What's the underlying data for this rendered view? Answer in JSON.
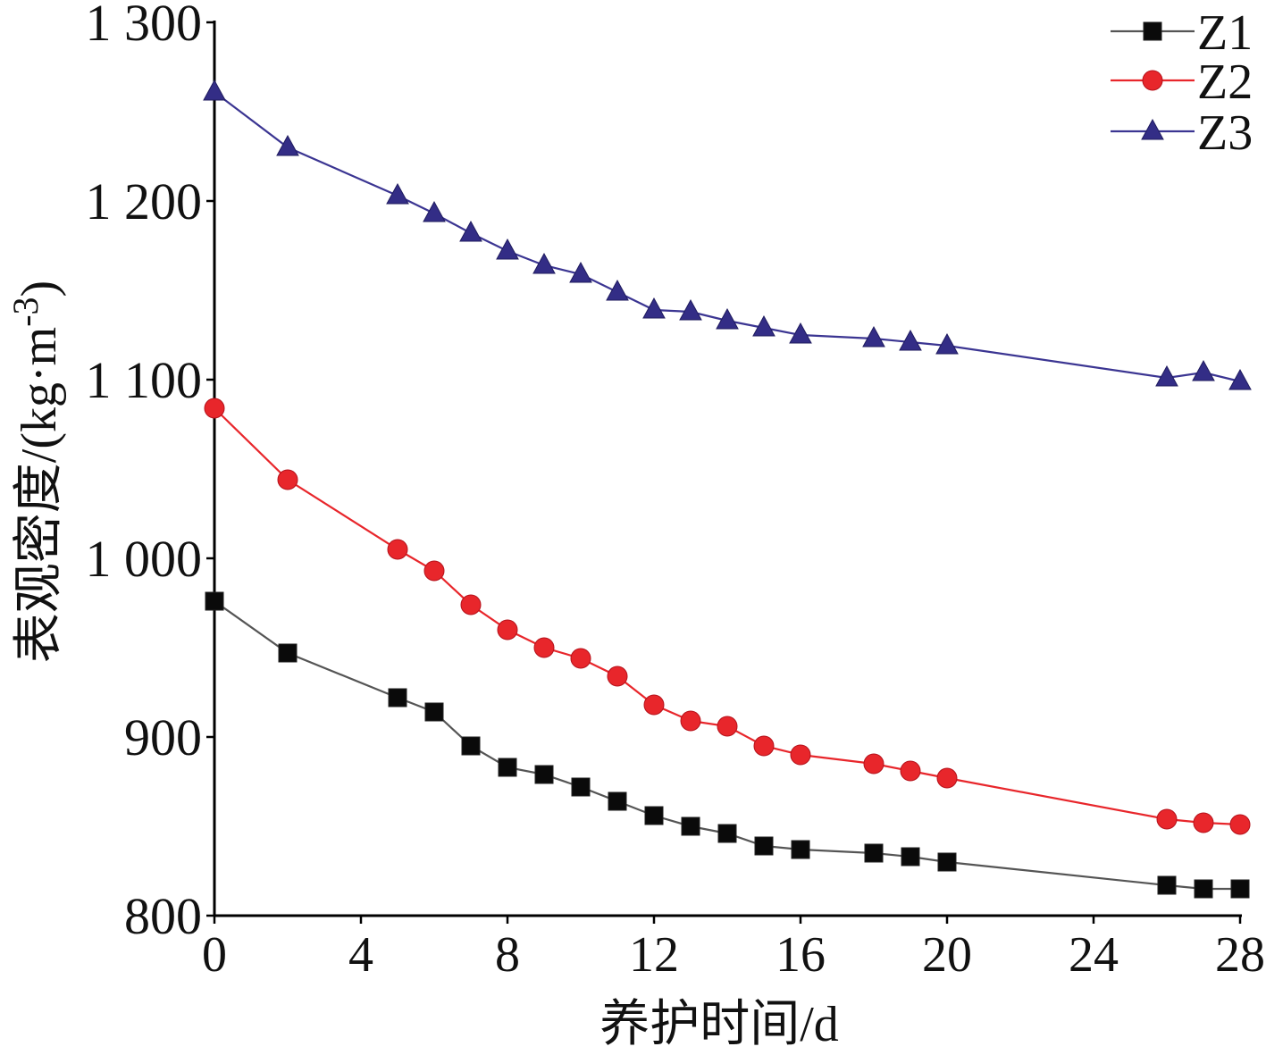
{
  "chart_data": {
    "type": "line",
    "title": "",
    "xlabel": "养护时间/d",
    "ylabel": {
      "base": "表观密度/(kg·m",
      "sup": "-3",
      "close": ")"
    },
    "xlim": [
      0,
      28
    ],
    "ylim": [
      800,
      1300
    ],
    "xticks": [
      0,
      4,
      8,
      12,
      16,
      20,
      24,
      28
    ],
    "yticks": [
      {
        "value": 800,
        "label": "800"
      },
      {
        "value": 900,
        "label": "900"
      },
      {
        "value": 1000,
        "label": "1 000"
      },
      {
        "value": 1100,
        "label": "1 100"
      },
      {
        "value": 1200,
        "label": "1 200"
      },
      {
        "value": 1300,
        "label": "1 300"
      }
    ],
    "grid": false,
    "legend": "top-right",
    "x": [
      0,
      2,
      5,
      6,
      7,
      8,
      9,
      10,
      11,
      12,
      13,
      14,
      15,
      16,
      18,
      19,
      20,
      26,
      27,
      28
    ],
    "series": [
      {
        "name": "Z1",
        "marker": "square",
        "color": "#0a0a0a",
        "line_color": "#555555",
        "values": [
          976,
          947,
          922,
          914,
          895,
          883,
          879,
          872,
          864,
          856,
          850,
          846,
          839,
          837,
          835,
          833,
          830,
          817,
          815,
          815
        ]
      },
      {
        "name": "Z2",
        "marker": "circle",
        "color": "#e8262b",
        "line_color": "#e8262b",
        "values": [
          1084,
          1044,
          1005,
          993,
          974,
          960,
          950,
          944,
          934,
          918,
          909,
          906,
          895,
          890,
          885,
          881,
          877,
          854,
          852,
          851
        ]
      },
      {
        "name": "Z3",
        "marker": "triangle",
        "color": "#332d86",
        "line_color": "#3b3592",
        "values": [
          1261,
          1230,
          1203,
          1193,
          1182,
          1172,
          1164,
          1159,
          1149,
          1139,
          1138,
          1133,
          1129,
          1125,
          1123,
          1121,
          1119,
          1101,
          1104,
          1099
        ]
      }
    ]
  }
}
